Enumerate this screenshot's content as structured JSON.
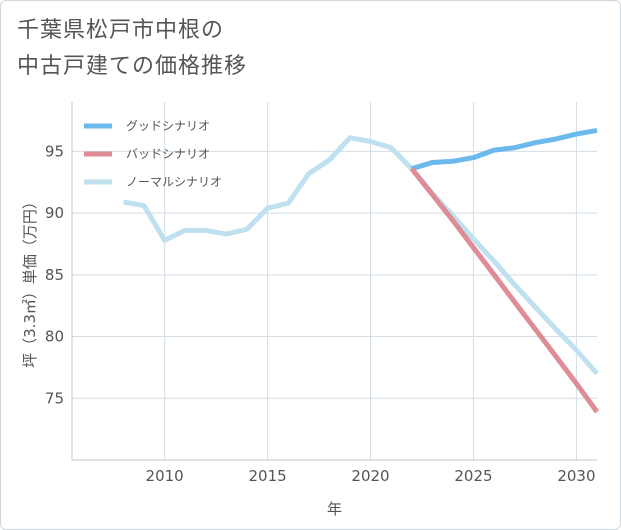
{
  "title_lines": [
    "千葉県松戸市中根の",
    "中古戸建ての価格推移"
  ],
  "chart_data": {
    "type": "line",
    "title": "千葉県松戸市中根の中古戸建ての価格推移",
    "xlabel": "年",
    "ylabel": "坪（3.3㎡）単価（万円）",
    "xlim": [
      2005.5,
      2031
    ],
    "ylim": [
      70,
      99
    ],
    "xticks": [
      2010,
      2015,
      2020,
      2025,
      2030
    ],
    "yticks": [
      75,
      80,
      85,
      90,
      95
    ],
    "grid": true,
    "legend_position": "top-left",
    "series": [
      {
        "name": "グッドシナリオ",
        "color": "#6cb9ee",
        "x": [
          2022,
          2023,
          2024,
          2025,
          2026,
          2027,
          2028,
          2029,
          2030,
          2031
        ],
        "y": [
          93.6,
          94.1,
          94.2,
          94.5,
          95.1,
          95.3,
          95.7,
          96.0,
          96.4,
          96.7
        ]
      },
      {
        "name": "バッドシナリオ",
        "color": "#de8c95",
        "x": [
          2022,
          2023,
          2024,
          2025,
          2026,
          2027,
          2028,
          2029,
          2030,
          2031
        ],
        "y": [
          93.6,
          91.5,
          89.4,
          87.2,
          85.0,
          82.8,
          80.6,
          78.4,
          76.2,
          73.9
        ]
      },
      {
        "name": "ノーマルシナリオ",
        "color": "#bfe0ef",
        "x": [
          2008,
          2009,
          2010,
          2011,
          2012,
          2013,
          2014,
          2015,
          2016,
          2017,
          2018,
          2019,
          2020,
          2021,
          2022,
          2023,
          2024,
          2025,
          2026,
          2027,
          2028,
          2029,
          2030,
          2031
        ],
        "y": [
          90.9,
          90.6,
          87.8,
          88.6,
          88.6,
          88.3,
          88.7,
          90.4,
          90.8,
          93.2,
          94.3,
          96.1,
          95.8,
          95.3,
          93.6,
          91.6,
          89.8,
          87.9,
          86.1,
          84.2,
          82.4,
          80.6,
          78.9,
          77.0
        ]
      }
    ]
  }
}
